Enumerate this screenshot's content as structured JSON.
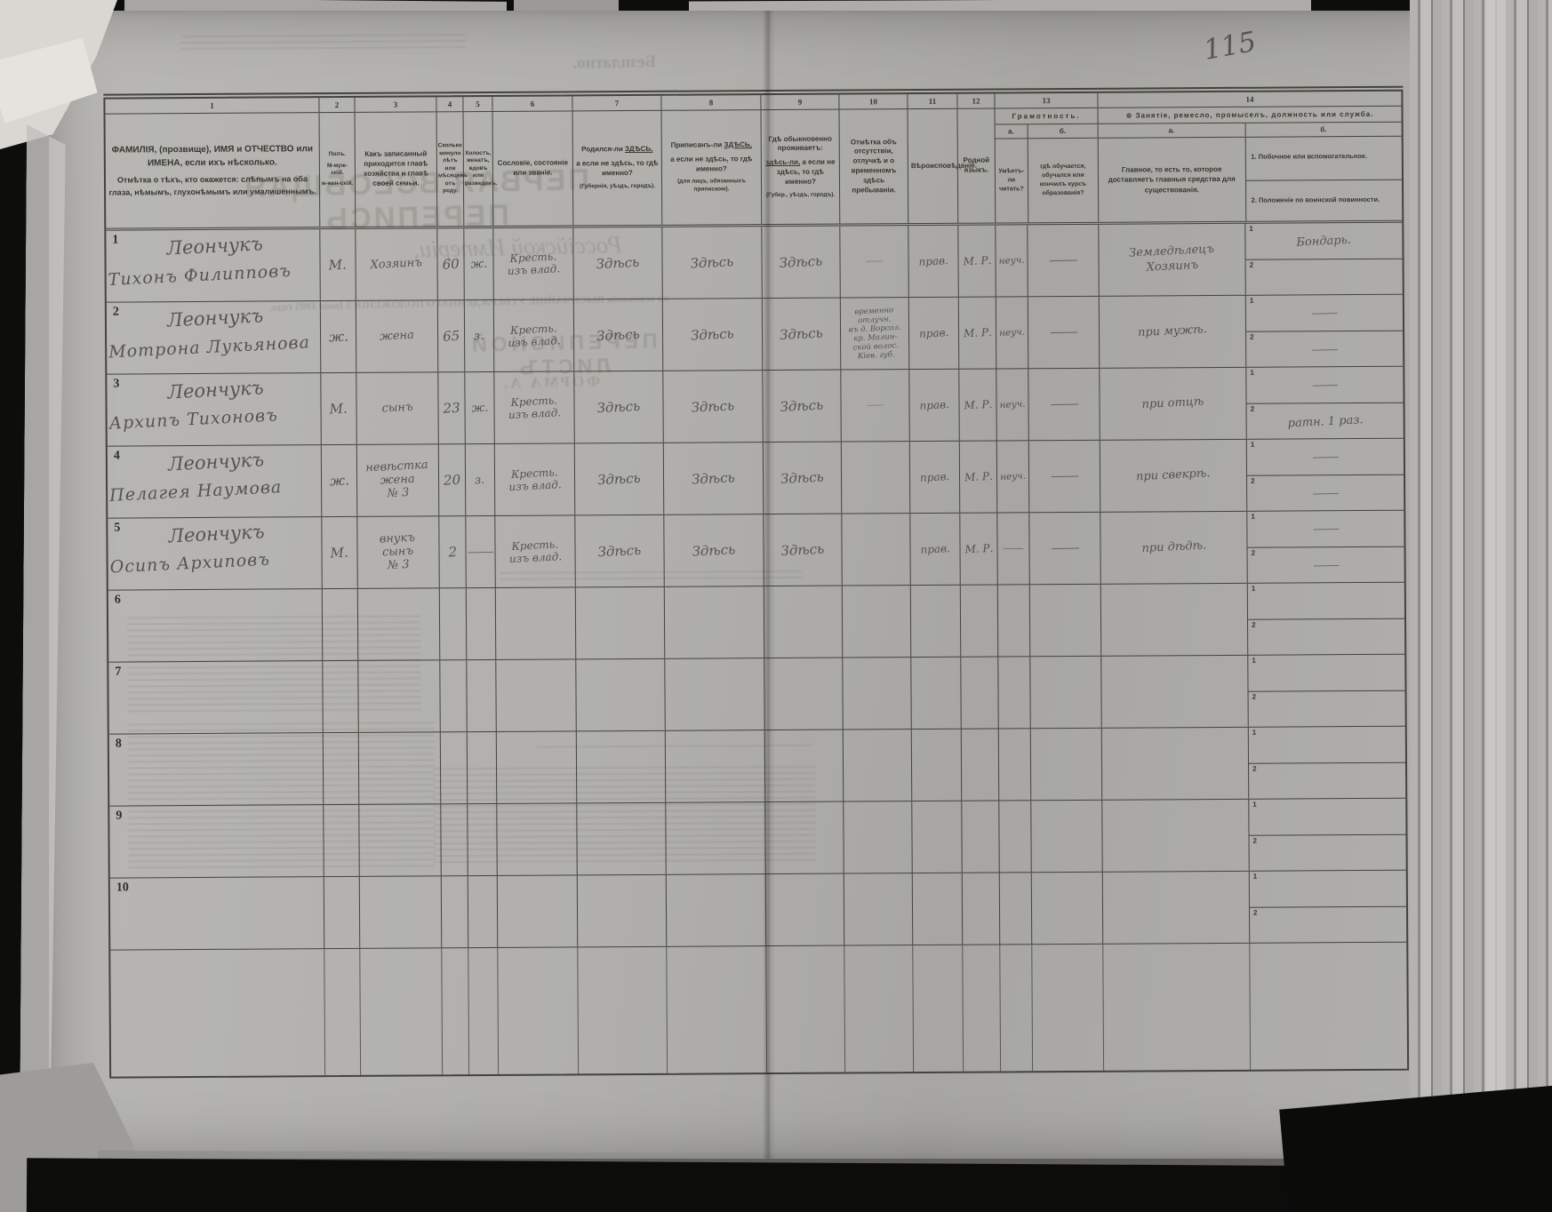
{
  "page": {
    "number": "115",
    "ghost": {
      "free": "Безплатно.",
      "title1": "ПЕРВАЯ ВСЕОБЩАЯ ПЕРЕПИСЬ",
      "title2": "Россійской Имперіи,",
      "title3": "на основаніи ВЫСОЧАЙШЕ УТВЕРЖДЕННАГО ПОЛОЖЕНІЯ 5 Іюня 1895 года.",
      "title4": "ПЕРЕПИСНОЙ ЛИСТЪ",
      "title5": "ФОРМА А."
    }
  },
  "table": {
    "col_numbers": [
      "1",
      "2",
      "3",
      "4",
      "5",
      "6",
      "7",
      "8",
      "9",
      "10",
      "11",
      "12",
      "13",
      "14"
    ],
    "subrow_labels": [
      "1",
      "2"
    ],
    "headers": {
      "c1a": "ФАМИЛІЯ, (прозвище), ИМЯ и ОТЧЕСТВО или ИМЕНА, если ихъ нѣсколько.",
      "c1b": "Отмѣтка о тѣхъ, кто окажется: слѣпымъ на оба глаза, нѣмымъ, глухонѣмымъ или умалишеннымъ.",
      "c2_title": "Полъ.",
      "c2_m": "М-муж-скій.",
      "c2_f": "ж-жен-скій.",
      "c3": "Какъ записанный приходится главѣ хозяйства и главѣ своей семьи.",
      "c4": "Сколько минуло лѣтъ или мѣсяцевъ отъ роду.",
      "c5": "Холостъ, женатъ, вдовъ или разведенъ.",
      "c6": "Сословіе, состояніе или званіе.",
      "c7_pre": "Родился-ли",
      "c7_u": "ЗДѢСЬ,",
      "c7_post": "а если не здѣсь, то гдѣ именно?",
      "c7_note": "(Губернія, уѣздъ, городъ).",
      "c8_pre": "Приписанъ-ли",
      "c8_u": "ЗДѢСЬ,",
      "c8_post": "а если не здѣсь, то гдѣ именно?",
      "c8_note": "(для лицъ, обязанныхъ припискою).",
      "c9_pre": "Гдѣ обыкновенно проживаетъ:",
      "c9_u": "здѣсь-ли,",
      "c9_post": "а если не здѣсь, то гдѣ именно?",
      "c9_note": "(Губер., уѣздъ, городъ).",
      "c10": "Отмѣтка объ отсутствіи, отлучкѣ и о временномъ здѣсь пребываніи.",
      "c11": "Вѣроисповѣданіе.",
      "c12": "Родной языкъ.",
      "c13_title": "Грамотность.",
      "ab_a": "а.",
      "ab_b": "б.",
      "c13_a": "Умѣетъ-ли читать?",
      "c13_b": "гдѣ обучается, обучался или кончилъ курсъ образованія?",
      "c14_mark": "⊕",
      "c14_title": "Занятіе, ремесло, промыселъ, должность или служба.",
      "c14_a": "Главное, то есть то, которое доставляетъ главныя средства для существованія.",
      "c14_b1": "1. Побочное или вспомогательное.",
      "c14_b2": "2. Положеніе по воинской повинности."
    },
    "rows": [
      {
        "n": "1",
        "surname": "Леончукъ",
        "name": "Тихонъ Филипповъ",
        "sex": "М.",
        "relation": "Хозяинъ",
        "age": "60",
        "marital": "ж.",
        "estate": "Кресть.\nизъ влад.",
        "born": "Здѣсь",
        "registered": "Здѣсь",
        "resides": "Здѣсь",
        "absence": "—",
        "religion": "прав.",
        "language": "М. Р.",
        "reads": "неуч.",
        "education": "—",
        "occupation": "Земледѣлецъ\nХозяинъ",
        "side1": "Бондарь.",
        "side2": ""
      },
      {
        "n": "2",
        "surname": "Леончукъ",
        "name": "Мотрона Лукьянова",
        "sex": "ж.",
        "relation": "жена",
        "age": "65",
        "marital": "з.",
        "estate": "Кресть.\nизъ влад.",
        "born": "Здѣсь",
        "registered": "Здѣсь",
        "resides": "Здѣсь",
        "absence": "временно\nотлучн.\nвъ д. Ворсол.\nкр. Малин-\nской волос.\nКіев. губ.",
        "religion": "прав.",
        "language": "М. Р.",
        "reads": "неуч.",
        "education": "—",
        "occupation": "при мужѣ.",
        "side1": "—",
        "side2": "—"
      },
      {
        "n": "3",
        "surname": "Леончукъ",
        "name": "Архипъ Тихоновъ",
        "sex": "М.",
        "relation": "сынъ",
        "age": "23",
        "marital": "ж.",
        "estate": "Кресть.\nизъ влад.",
        "born": "Здѣсь",
        "registered": "Здѣсь",
        "resides": "Здѣсь",
        "absence": "—",
        "religion": "прав.",
        "language": "М. Р.",
        "reads": "неуч.",
        "education": "—",
        "occupation": "при отцѣ",
        "side1": "—",
        "side2": "ратн. 1 раз."
      },
      {
        "n": "4",
        "surname": "Леончукъ",
        "name": "Пелагея Наумова",
        "sex": "ж.",
        "relation": "невѣстка\nжена\n№ 3",
        "age": "20",
        "marital": "з.",
        "estate": "Кресть.\nизъ влад.",
        "born": "Здѣсь",
        "registered": "Здѣсь",
        "resides": "Здѣсь",
        "absence": "",
        "religion": "прав.",
        "language": "М. Р.",
        "reads": "неуч.",
        "education": "—",
        "occupation": "при свекрѣ.",
        "side1": "—",
        "side2": "—"
      },
      {
        "n": "5",
        "surname": "Леончукъ",
        "name": "Осипъ Архиповъ",
        "sex": "М.",
        "relation": "внукъ\nсынъ\n№ 3",
        "age": "2",
        "marital": "—",
        "estate": "Кресть.\nизъ влад.",
        "born": "Здѣсь",
        "registered": "Здѣсь",
        "resides": "Здѣсь",
        "absence": "",
        "religion": "прав.",
        "language": "М. Р.",
        "reads": "—",
        "education": "—",
        "occupation": "при дѣдѣ.",
        "side1": "—",
        "side2": "—"
      },
      {
        "n": "6",
        "surname": "",
        "name": "",
        "sex": "",
        "relation": "",
        "age": "",
        "marital": "",
        "estate": "",
        "born": "",
        "registered": "",
        "resides": "",
        "absence": "",
        "religion": "",
        "language": "",
        "reads": "",
        "education": "",
        "occupation": "",
        "side1": "",
        "side2": ""
      },
      {
        "n": "7",
        "surname": "",
        "name": "",
        "sex": "",
        "relation": "",
        "age": "",
        "marital": "",
        "estate": "",
        "born": "",
        "registered": "",
        "resides": "",
        "absence": "",
        "religion": "",
        "language": "",
        "reads": "",
        "education": "",
        "occupation": "",
        "side1": "",
        "side2": ""
      },
      {
        "n": "8",
        "surname": "",
        "name": "",
        "sex": "",
        "relation": "",
        "age": "",
        "marital": "",
        "estate": "",
        "born": "",
        "registered": "",
        "resides": "",
        "absence": "",
        "religion": "",
        "language": "",
        "reads": "",
        "education": "",
        "occupation": "",
        "side1": "",
        "side2": ""
      },
      {
        "n": "9",
        "surname": "",
        "name": "",
        "sex": "",
        "relation": "",
        "age": "",
        "marital": "",
        "estate": "",
        "born": "",
        "registered": "",
        "resides": "",
        "absence": "",
        "religion": "",
        "language": "",
        "reads": "",
        "education": "",
        "occupation": "",
        "side1": "",
        "side2": ""
      },
      {
        "n": "10",
        "surname": "",
        "name": "",
        "sex": "",
        "relation": "",
        "age": "",
        "marital": "",
        "estate": "",
        "born": "",
        "registered": "",
        "resides": "",
        "absence": "",
        "religion": "",
        "language": "",
        "reads": "",
        "education": "",
        "occupation": "",
        "side1": "",
        "side2": ""
      }
    ]
  }
}
